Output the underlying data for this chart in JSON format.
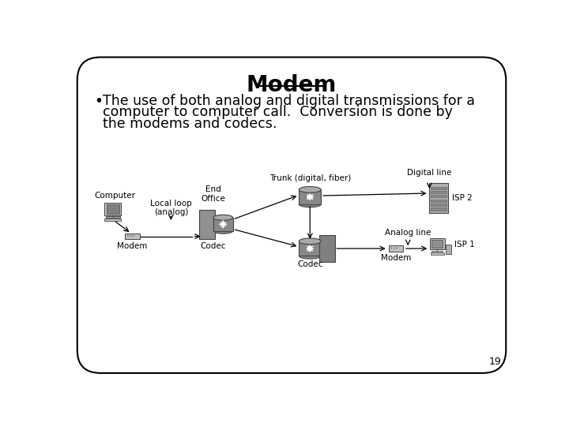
{
  "title": "Modem",
  "bullet_lines": [
    "The use of both analog and digital transmissions for a",
    "computer to computer call.  Conversion is done by",
    "the modems and codecs."
  ],
  "background_color": "#ffffff",
  "border_color": "#000000",
  "page_number": "19",
  "diagram_labels": {
    "computer": "Computer",
    "modem_left": "Modem",
    "local_loop": "Local loop\n(analog)",
    "codec_left": "Codec",
    "end_office": "End\nOffice",
    "trunk": "Trunk (digital, fiber)",
    "digital_line": "Digital line",
    "analog_line": "Analog line",
    "codec_right": "Codec",
    "modem_right": "Modem",
    "isp1": "ISP 1",
    "isp2": "ISP 2"
  },
  "title_fontsize": 20,
  "bullet_fontsize": 12.5,
  "label_fontsize": 7.5
}
